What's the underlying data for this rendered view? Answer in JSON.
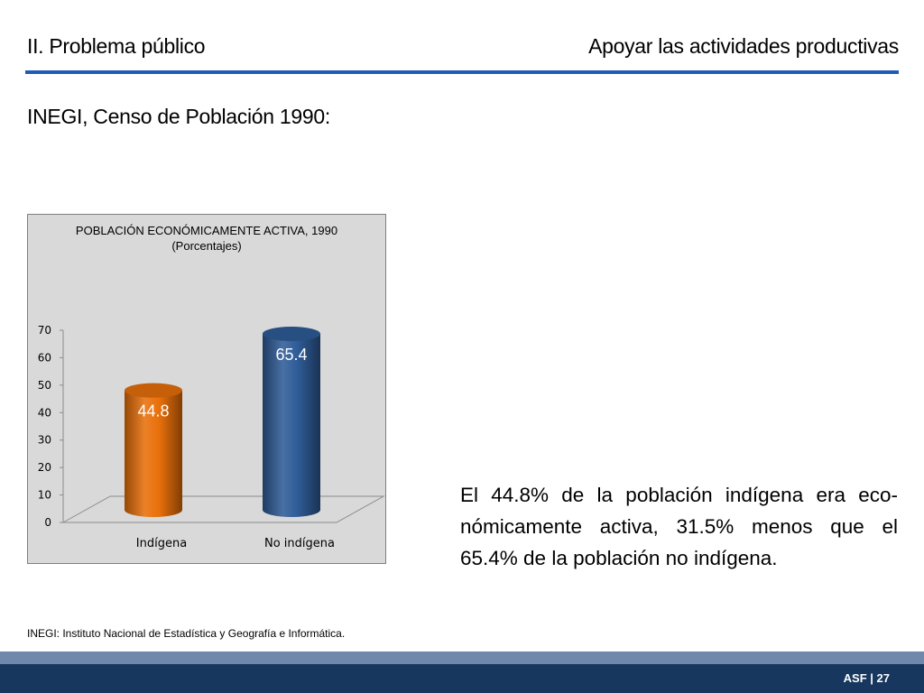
{
  "header": {
    "left_title": "II. Problema público",
    "right_title": "Apoyar las actividades productivas"
  },
  "subtitle": "INEGI, Censo de Población 1990:",
  "chart_data": {
    "type": "bar",
    "title": "POBLACIÓN  ECONÓMICAMENTE ACTIVA, 1990",
    "subtitle": "(Porcentajes)",
    "categories": [
      "Indígena",
      "No indígena"
    ],
    "values": [
      44.8,
      65.4
    ],
    "data_labels": [
      "44.8",
      "65.4"
    ],
    "colors": [
      "#e8700a",
      "#2f5d98"
    ],
    "ylim": [
      0,
      70
    ],
    "yticks": [
      0,
      10,
      20,
      30,
      40,
      50,
      60,
      70
    ],
    "xlabel": "",
    "ylabel": "",
    "grid": false,
    "style": "3d-cylinder"
  },
  "body_text": "El 44.8% de la población indígena era eco-nómicamente activa, 31.5% menos que el 65.4% de la población no indígena.",
  "footnote": "INEGI: Instituto Nacional de Estadística y Geografía e Informática.",
  "footer": {
    "label": "ASF | 27"
  }
}
